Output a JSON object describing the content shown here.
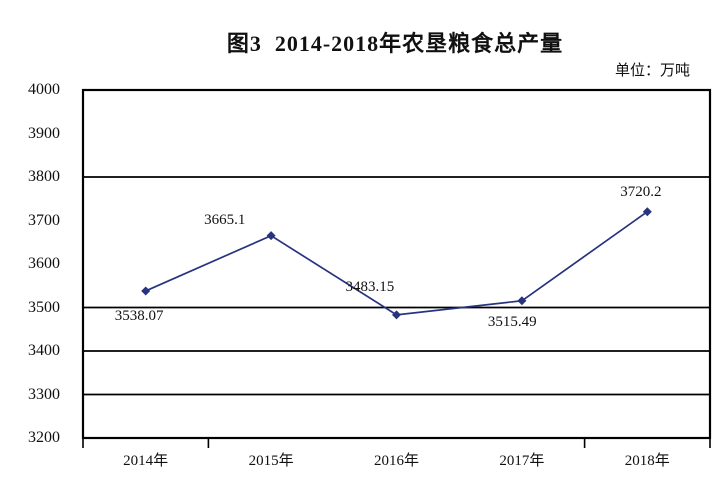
{
  "header": {
    "title": "图3  2014-2018年农垦粮食总产量",
    "unit_label": "单位：万吨"
  },
  "chart_data": {
    "type": "line",
    "title": "图3  2014-2018年农垦粮食总产量",
    "unit": "万吨",
    "categories": [
      "2014年",
      "2015年",
      "2016年",
      "2017年",
      "2018年"
    ],
    "values": [
      3538.07,
      3665.1,
      3483.15,
      3515.49,
      3720.2
    ],
    "data_labels": [
      "3538.07",
      "3665.1",
      "3483.15",
      "3515.49",
      "3720.2"
    ],
    "yticks": [
      "4000",
      "3900",
      "3800",
      "3700",
      "3600",
      "3500",
      "3400",
      "3300",
      "3200"
    ],
    "ytick_values": [
      4000,
      3900,
      3800,
      3700,
      3600,
      3500,
      3400,
      3300,
      3200
    ],
    "ylim": [
      3200,
      4000
    ],
    "gridline_values": [
      3800,
      3500,
      3400,
      3300
    ],
    "legend": "none",
    "grid": "partial-horizontal",
    "marker": "diamond",
    "line_color": "#27337f",
    "axis_color": "#000000",
    "xlabel": "",
    "ylabel": ""
  }
}
